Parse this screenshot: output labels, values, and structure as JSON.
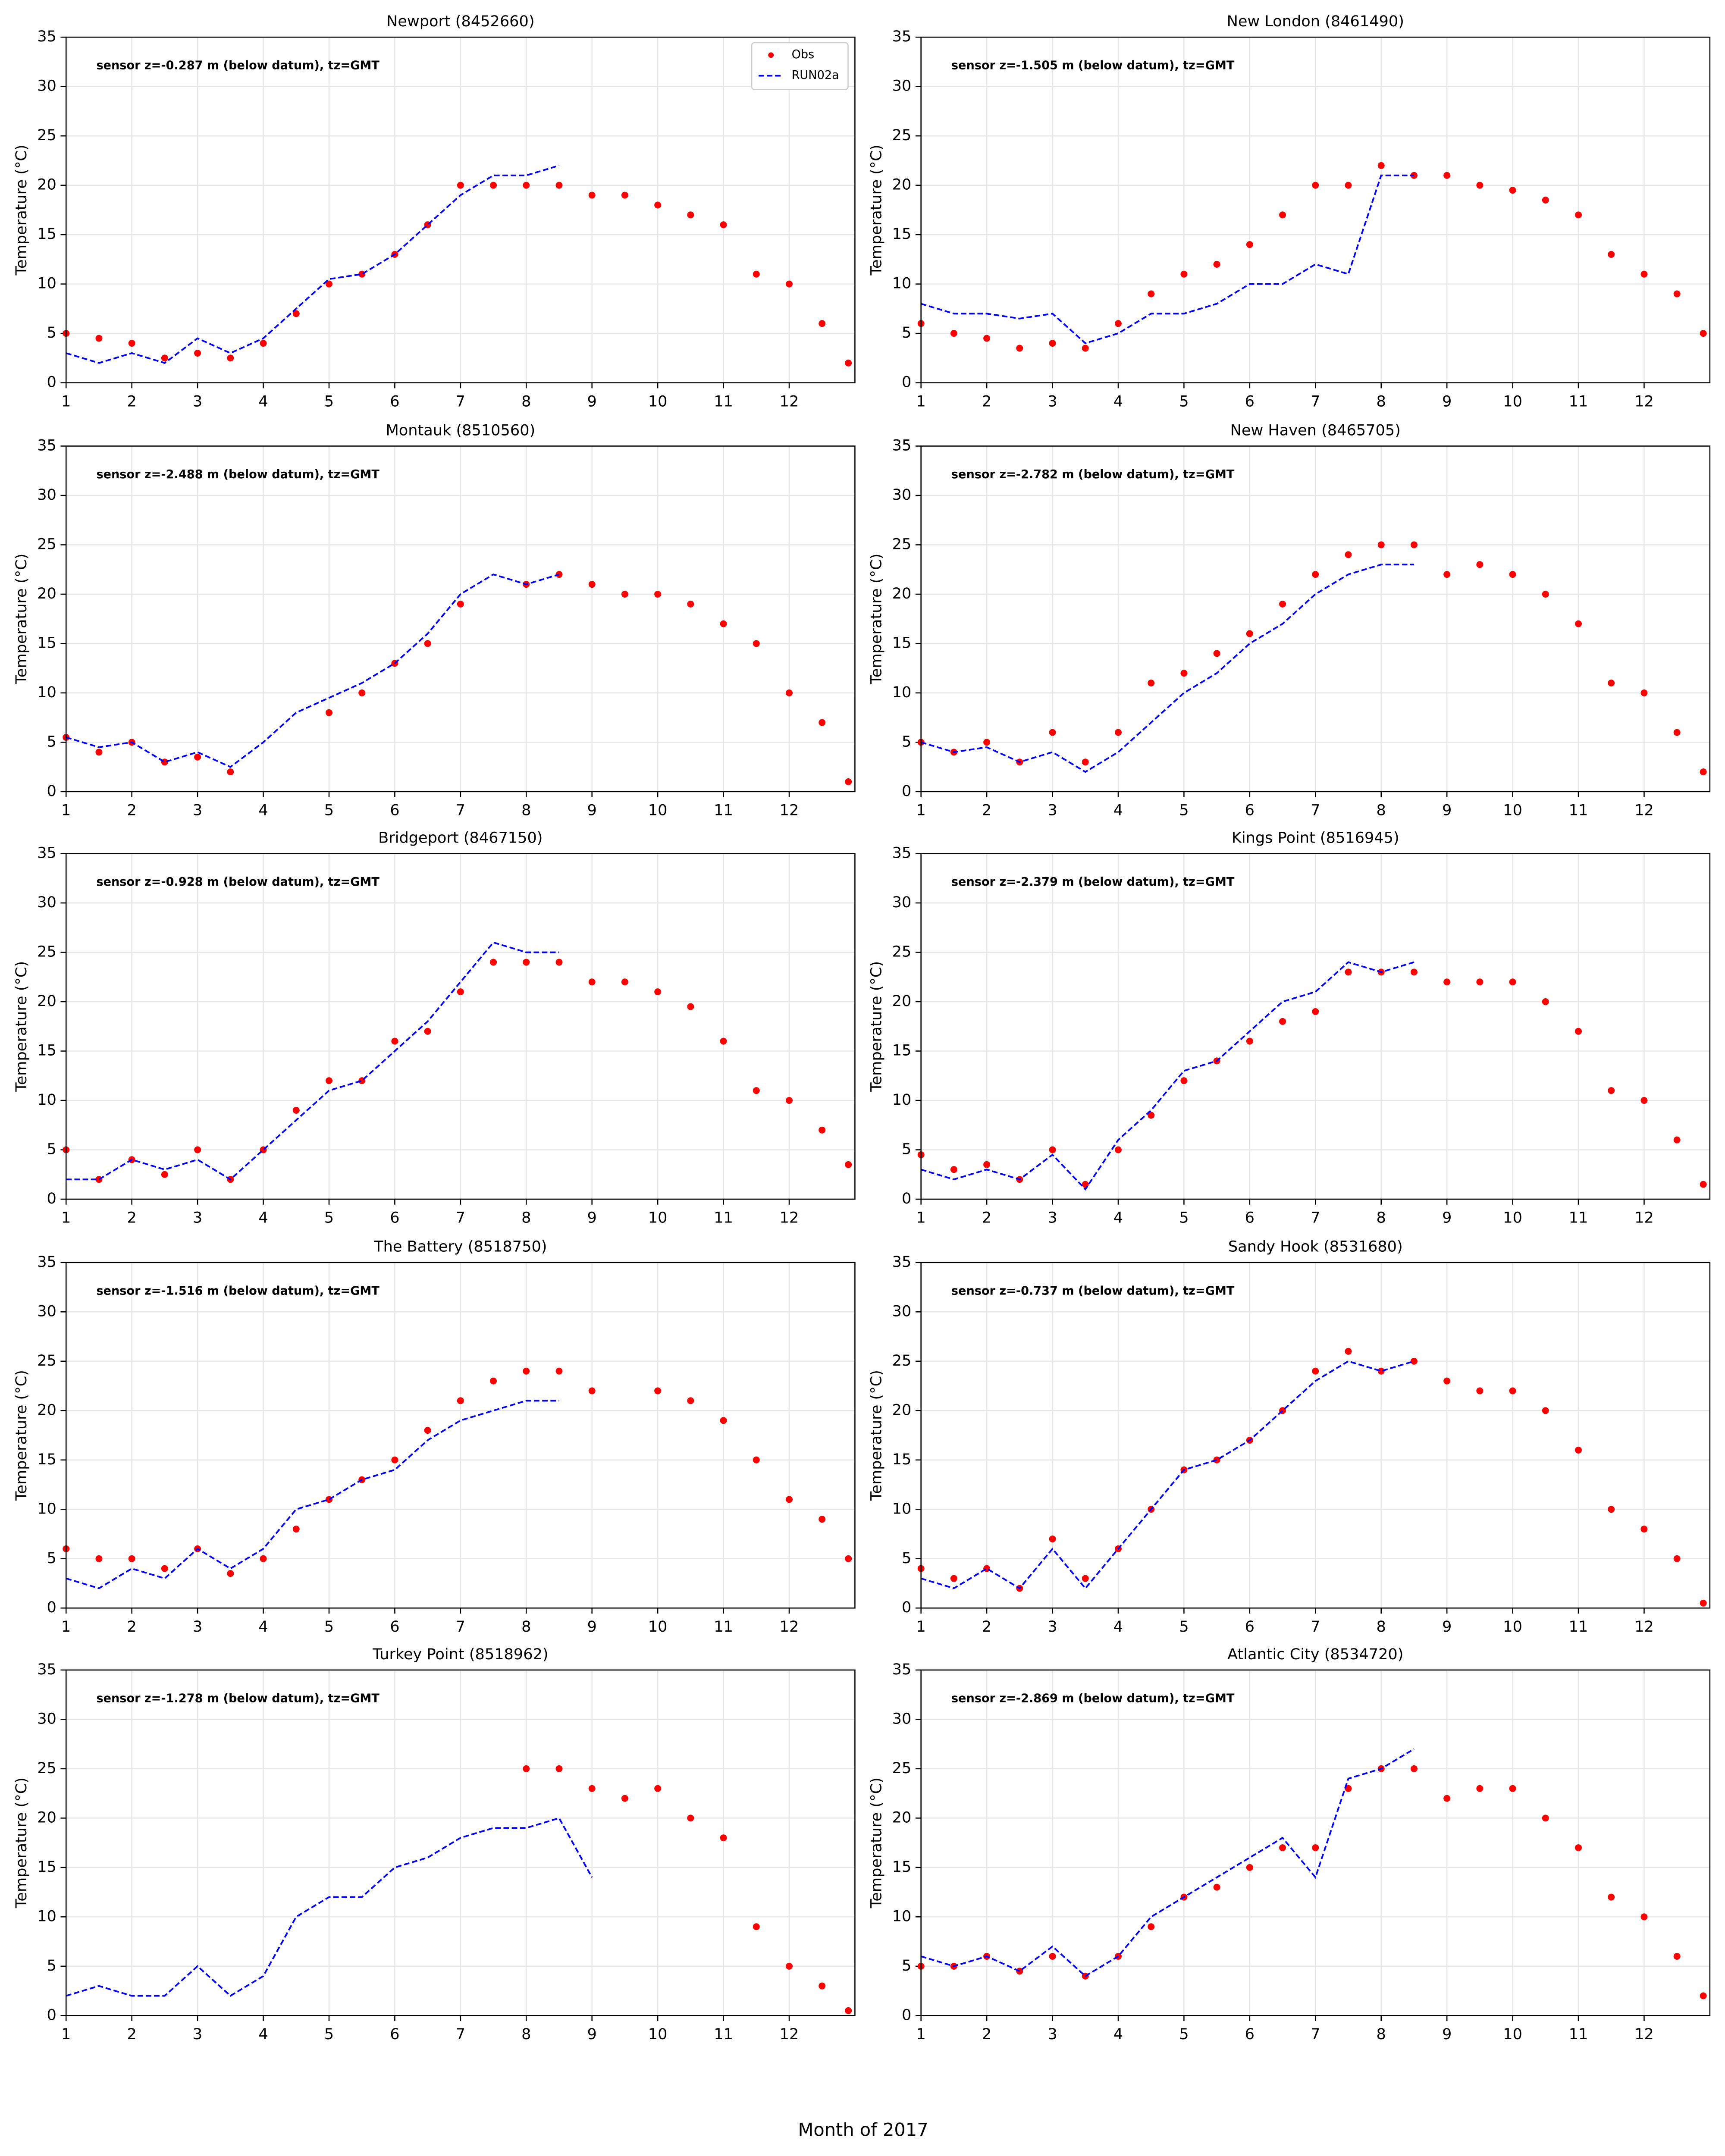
{
  "xlabel": "Month of 2017",
  "chart_data": [
    {
      "type": "line",
      "title": "Newport (8452660)",
      "annotation": "sensor z=-0.287 m (below datum), tz=GMT",
      "ylabel": "Temperature (°C)",
      "legend": "upper right",
      "grid": true,
      "xlim": [
        1,
        13
      ],
      "xticks": [
        1,
        2,
        3,
        4,
        5,
        6,
        7,
        8,
        9,
        10,
        11,
        12
      ],
      "ylim": [
        0,
        35
      ],
      "yticks": [
        0,
        5,
        10,
        15,
        20,
        25,
        30,
        35
      ],
      "x": [
        1,
        1.5,
        2,
        2.5,
        3,
        3.5,
        4,
        4.5,
        5,
        5.5,
        6,
        6.5,
        7,
        7.5,
        8,
        8.5,
        9,
        9.5,
        10,
        10.5,
        11,
        11.5,
        12,
        12.5,
        12.9
      ],
      "series": [
        {
          "name": "Obs",
          "color": "#ff0000",
          "values": [
            5,
            4.5,
            4,
            2.5,
            3,
            2.5,
            4,
            7,
            10,
            11,
            13,
            16,
            20,
            20,
            20,
            20,
            19,
            19,
            18,
            17,
            16,
            11,
            10,
            6,
            2
          ]
        },
        {
          "name": "RUN02a",
          "color": "#0000ff",
          "values": [
            3,
            2,
            3,
            2,
            4.5,
            3,
            4.5,
            7.5,
            10.5,
            11,
            13,
            16,
            19,
            21,
            21,
            22,
            null,
            null,
            null,
            null,
            null,
            null,
            null,
            null,
            null
          ]
        }
      ]
    },
    {
      "type": "line",
      "title": "New London (8461490)",
      "annotation": "sensor z=-1.505 m (below datum), tz=GMT",
      "ylabel": "Temperature (°C)",
      "grid": true,
      "xlim": [
        1,
        13
      ],
      "xticks": [
        1,
        2,
        3,
        4,
        5,
        6,
        7,
        8,
        9,
        10,
        11,
        12
      ],
      "ylim": [
        0,
        35
      ],
      "yticks": [
        0,
        5,
        10,
        15,
        20,
        25,
        30,
        35
      ],
      "x": [
        1,
        1.5,
        2,
        2.5,
        3,
        3.5,
        4,
        4.5,
        5,
        5.5,
        6,
        6.5,
        7,
        7.5,
        8,
        8.5,
        9,
        9.5,
        10,
        10.5,
        11,
        11.5,
        12,
        12.5,
        12.9
      ],
      "series": [
        {
          "name": "Obs",
          "color": "#ff0000",
          "values": [
            6,
            5,
            4.5,
            3.5,
            4,
            3.5,
            6,
            9,
            11,
            12,
            14,
            17,
            20,
            20,
            22,
            21,
            21,
            20,
            19.5,
            18.5,
            17,
            13,
            11,
            9,
            5
          ]
        },
        {
          "name": "RUN02a",
          "color": "#0000ff",
          "values": [
            8,
            7,
            7,
            6.5,
            7,
            4,
            5,
            7,
            7,
            8,
            10,
            10,
            12,
            11,
            21,
            21,
            null,
            null,
            null,
            null,
            null,
            null,
            null,
            null,
            null
          ]
        }
      ]
    },
    {
      "type": "line",
      "title": "Montauk (8510560)",
      "annotation": "sensor z=-2.488 m (below datum), tz=GMT",
      "ylabel": "Temperature (°C)",
      "grid": true,
      "xlim": [
        1,
        13
      ],
      "xticks": [
        1,
        2,
        3,
        4,
        5,
        6,
        7,
        8,
        9,
        10,
        11,
        12
      ],
      "ylim": [
        0,
        35
      ],
      "yticks": [
        0,
        5,
        10,
        15,
        20,
        25,
        30,
        35
      ],
      "x": [
        1,
        1.5,
        2,
        2.5,
        3,
        3.5,
        4,
        4.5,
        5,
        5.5,
        6,
        6.5,
        7,
        7.5,
        8,
        8.5,
        9,
        9.5,
        10,
        10.5,
        11,
        11.5,
        12,
        12.5,
        12.9
      ],
      "series": [
        {
          "name": "Obs",
          "color": "#ff0000",
          "values": [
            5.5,
            4,
            5,
            3,
            3.5,
            2,
            null,
            null,
            8,
            10,
            13,
            15,
            19,
            null,
            21,
            22,
            21,
            20,
            20,
            19,
            17,
            15,
            10,
            7,
            1
          ]
        },
        {
          "name": "RUN02a",
          "color": "#0000ff",
          "values": [
            5.5,
            4.5,
            5,
            3,
            4,
            2.5,
            5,
            8,
            9.5,
            11,
            13,
            16,
            20,
            22,
            21,
            22,
            null,
            null,
            null,
            null,
            null,
            null,
            null,
            null,
            null
          ]
        }
      ]
    },
    {
      "type": "line",
      "title": "New Haven (8465705)",
      "annotation": "sensor z=-2.782 m (below datum), tz=GMT",
      "ylabel": "Temperature (°C)",
      "grid": true,
      "xlim": [
        1,
        13
      ],
      "xticks": [
        1,
        2,
        3,
        4,
        5,
        6,
        7,
        8,
        9,
        10,
        11,
        12
      ],
      "ylim": [
        0,
        35
      ],
      "yticks": [
        0,
        5,
        10,
        15,
        20,
        25,
        30,
        35
      ],
      "x": [
        1,
        1.5,
        2,
        2.5,
        3,
        3.5,
        4,
        4.5,
        5,
        5.5,
        6,
        6.5,
        7,
        7.5,
        8,
        8.5,
        9,
        9.5,
        10,
        10.5,
        11,
        11.5,
        12,
        12.5,
        12.9
      ],
      "series": [
        {
          "name": "Obs",
          "color": "#ff0000",
          "values": [
            5,
            4,
            5,
            3,
            6,
            3,
            6,
            11,
            12,
            14,
            16,
            19,
            22,
            24,
            25,
            25,
            22,
            23,
            22,
            20,
            17,
            11,
            10,
            6,
            2
          ]
        },
        {
          "name": "RUN02a",
          "color": "#0000ff",
          "values": [
            5,
            4,
            4.5,
            3,
            4,
            2,
            4,
            7,
            10,
            12,
            15,
            17,
            20,
            22,
            23,
            23,
            null,
            null,
            null,
            null,
            null,
            null,
            null,
            null,
            null
          ]
        }
      ]
    },
    {
      "type": "line",
      "title": "Bridgeport (8467150)",
      "annotation": "sensor z=-0.928 m (below datum), tz=GMT",
      "ylabel": "Temperature (°C)",
      "grid": true,
      "xlim": [
        1,
        13
      ],
      "xticks": [
        1,
        2,
        3,
        4,
        5,
        6,
        7,
        8,
        9,
        10,
        11,
        12
      ],
      "ylim": [
        0,
        35
      ],
      "yticks": [
        0,
        5,
        10,
        15,
        20,
        25,
        30,
        35
      ],
      "x": [
        1,
        1.5,
        2,
        2.5,
        3,
        3.5,
        4,
        4.5,
        5,
        5.5,
        6,
        6.5,
        7,
        7.5,
        8,
        8.5,
        9,
        9.5,
        10,
        10.5,
        11,
        11.5,
        12,
        12.5,
        12.9
      ],
      "series": [
        {
          "name": "Obs",
          "color": "#ff0000",
          "values": [
            5,
            2,
            4,
            2.5,
            5,
            2,
            5,
            9,
            12,
            12,
            16,
            17,
            21,
            24,
            24,
            24,
            22,
            22,
            21,
            19.5,
            16,
            11,
            10,
            7,
            3.5
          ]
        },
        {
          "name": "RUN02a",
          "color": "#0000ff",
          "values": [
            2,
            2,
            4,
            3,
            4,
            2,
            5,
            8,
            11,
            12,
            15,
            18,
            22,
            26,
            25,
            25,
            null,
            null,
            null,
            null,
            null,
            null,
            null,
            null,
            null
          ]
        }
      ]
    },
    {
      "type": "line",
      "title": "Kings Point (8516945)",
      "annotation": "sensor z=-2.379 m (below datum), tz=GMT",
      "ylabel": "Temperature (°C)",
      "grid": true,
      "xlim": [
        1,
        13
      ],
      "xticks": [
        1,
        2,
        3,
        4,
        5,
        6,
        7,
        8,
        9,
        10,
        11,
        12
      ],
      "ylim": [
        0,
        35
      ],
      "yticks": [
        0,
        5,
        10,
        15,
        20,
        25,
        30,
        35
      ],
      "x": [
        1,
        1.5,
        2,
        2.5,
        3,
        3.5,
        4,
        4.5,
        5,
        5.5,
        6,
        6.5,
        7,
        7.5,
        8,
        8.5,
        9,
        9.5,
        10,
        10.5,
        11,
        11.5,
        12,
        12.5,
        12.9
      ],
      "series": [
        {
          "name": "Obs",
          "color": "#ff0000",
          "values": [
            4.5,
            3,
            3.5,
            2,
            5,
            1.5,
            5,
            8.5,
            12,
            14,
            16,
            18,
            19,
            23,
            23,
            23,
            22,
            22,
            22,
            20,
            17,
            11,
            10,
            6,
            1.5
          ]
        },
        {
          "name": "RUN02a",
          "color": "#0000ff",
          "values": [
            3,
            2,
            3,
            2,
            4.5,
            1,
            6,
            9,
            13,
            14,
            17,
            20,
            21,
            24,
            23,
            24,
            null,
            null,
            null,
            null,
            null,
            null,
            null,
            null,
            null
          ]
        }
      ]
    },
    {
      "type": "line",
      "title": "The Battery (8518750)",
      "annotation": "sensor z=-1.516 m (below datum), tz=GMT",
      "ylabel": "Temperature (°C)",
      "grid": true,
      "xlim": [
        1,
        13
      ],
      "xticks": [
        1,
        2,
        3,
        4,
        5,
        6,
        7,
        8,
        9,
        10,
        11,
        12
      ],
      "ylim": [
        0,
        35
      ],
      "yticks": [
        0,
        5,
        10,
        15,
        20,
        25,
        30,
        35
      ],
      "x": [
        1,
        1.5,
        2,
        2.5,
        3,
        3.5,
        4,
        4.5,
        5,
        5.5,
        6,
        6.5,
        7,
        7.5,
        8,
        8.5,
        9,
        9.5,
        10,
        10.5,
        11,
        11.5,
        12,
        12.5,
        12.9
      ],
      "series": [
        {
          "name": "Obs",
          "color": "#ff0000",
          "values": [
            6,
            5,
            5,
            4,
            6,
            3.5,
            5,
            8,
            11,
            13,
            15,
            18,
            21,
            23,
            24,
            24,
            22,
            null,
            22,
            21,
            19,
            15,
            11,
            9,
            5
          ]
        },
        {
          "name": "RUN02a",
          "color": "#0000ff",
          "values": [
            3,
            2,
            4,
            3,
            6,
            4,
            6,
            10,
            11,
            13,
            14,
            17,
            19,
            20,
            21,
            21,
            null,
            null,
            null,
            null,
            null,
            null,
            null,
            null,
            null
          ]
        }
      ]
    },
    {
      "type": "line",
      "title": "Sandy Hook (8531680)",
      "annotation": "sensor z=-0.737 m (below datum), tz=GMT",
      "ylabel": "Temperature (°C)",
      "grid": true,
      "xlim": [
        1,
        13
      ],
      "xticks": [
        1,
        2,
        3,
        4,
        5,
        6,
        7,
        8,
        9,
        10,
        11,
        12
      ],
      "ylim": [
        0,
        35
      ],
      "yticks": [
        0,
        5,
        10,
        15,
        20,
        25,
        30,
        35
      ],
      "x": [
        1,
        1.5,
        2,
        2.5,
        3,
        3.5,
        4,
        4.5,
        5,
        5.5,
        6,
        6.5,
        7,
        7.5,
        8,
        8.5,
        9,
        9.5,
        10,
        10.5,
        11,
        11.5,
        12,
        12.5,
        12.9
      ],
      "series": [
        {
          "name": "Obs",
          "color": "#ff0000",
          "values": [
            4,
            3,
            4,
            2,
            7,
            3,
            6,
            10,
            14,
            15,
            17,
            20,
            24,
            26,
            24,
            25,
            23,
            22,
            22,
            20,
            16,
            10,
            8,
            5,
            0.5
          ]
        },
        {
          "name": "RUN02a",
          "color": "#0000ff",
          "values": [
            3,
            2,
            4,
            2,
            6,
            2,
            6,
            10,
            14,
            15,
            17,
            20,
            23,
            25,
            24,
            25,
            null,
            null,
            null,
            null,
            null,
            null,
            null,
            null,
            null
          ]
        }
      ]
    },
    {
      "type": "line",
      "title": "Turkey Point (8518962)",
      "annotation": "sensor z=-1.278 m (below datum), tz=GMT",
      "ylabel": "Temperature (°C)",
      "grid": true,
      "xlim": [
        1,
        13
      ],
      "xticks": [
        1,
        2,
        3,
        4,
        5,
        6,
        7,
        8,
        9,
        10,
        11,
        12
      ],
      "ylim": [
        0,
        35
      ],
      "yticks": [
        0,
        5,
        10,
        15,
        20,
        25,
        30,
        35
      ],
      "x": [
        1,
        1.5,
        2,
        2.5,
        3,
        3.5,
        4,
        4.5,
        5,
        5.5,
        6,
        6.5,
        7,
        7.5,
        8,
        8.5,
        9,
        9.5,
        10,
        10.5,
        11,
        11.5,
        12,
        12.5,
        12.9
      ],
      "series": [
        {
          "name": "Obs",
          "color": "#ff0000",
          "values": [
            null,
            null,
            null,
            null,
            null,
            null,
            null,
            null,
            null,
            null,
            null,
            null,
            null,
            null,
            25,
            25,
            23,
            22,
            23,
            20,
            18,
            9,
            5,
            3,
            0.5
          ]
        },
        {
          "name": "RUN02a",
          "color": "#0000ff",
          "values": [
            2,
            3,
            2,
            2,
            5,
            2,
            4,
            10,
            12,
            12,
            15,
            16,
            18,
            19,
            19,
            20,
            14,
            null,
            null,
            null,
            null,
            null,
            null,
            null,
            null
          ]
        }
      ]
    },
    {
      "type": "line",
      "title": "Atlantic City (8534720)",
      "annotation": "sensor z=-2.869 m (below datum), tz=GMT",
      "ylabel": "Temperature (°C)",
      "grid": true,
      "xlim": [
        1,
        13
      ],
      "xticks": [
        1,
        2,
        3,
        4,
        5,
        6,
        7,
        8,
        9,
        10,
        11,
        12
      ],
      "ylim": [
        0,
        35
      ],
      "yticks": [
        0,
        5,
        10,
        15,
        20,
        25,
        30,
        35
      ],
      "x": [
        1,
        1.5,
        2,
        2.5,
        3,
        3.5,
        4,
        4.5,
        5,
        5.5,
        6,
        6.5,
        7,
        7.5,
        8,
        8.5,
        9,
        9.5,
        10,
        10.5,
        11,
        11.5,
        12,
        12.5,
        12.9
      ],
      "series": [
        {
          "name": "Obs",
          "color": "#ff0000",
          "values": [
            5,
            5,
            6,
            4.5,
            6,
            4,
            6,
            9,
            12,
            13,
            15,
            17,
            17,
            23,
            25,
            25,
            22,
            23,
            23,
            20,
            17,
            12,
            10,
            6,
            2
          ]
        },
        {
          "name": "RUN02a",
          "color": "#0000ff",
          "values": [
            6,
            5,
            6,
            4.5,
            7,
            4,
            6,
            10,
            12,
            14,
            16,
            18,
            14,
            24,
            25,
            27,
            null,
            null,
            null,
            null,
            null,
            null,
            null,
            null,
            null
          ]
        }
      ]
    }
  ]
}
